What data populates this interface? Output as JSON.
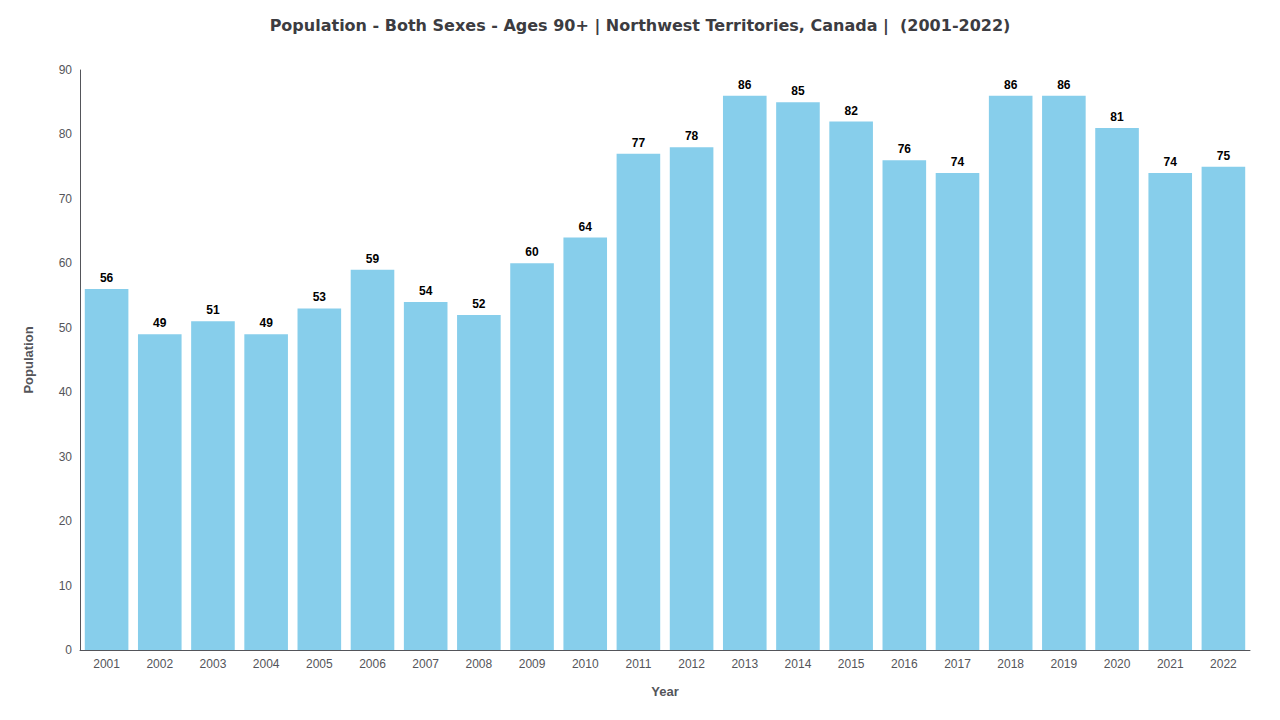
{
  "chart_data": {
    "type": "bar",
    "title": "Population - Both Sexes - Ages 90+ | Northwest Territories, Canada |  (2001-2022)",
    "xlabel": "Year",
    "ylabel": "Population",
    "categories": [
      "2001",
      "2002",
      "2003",
      "2004",
      "2005",
      "2006",
      "2007",
      "2008",
      "2009",
      "2010",
      "2011",
      "2012",
      "2013",
      "2014",
      "2015",
      "2016",
      "2017",
      "2018",
      "2019",
      "2020",
      "2021",
      "2022"
    ],
    "values": [
      56,
      49,
      51,
      49,
      53,
      59,
      54,
      52,
      60,
      64,
      77,
      78,
      86,
      85,
      82,
      76,
      74,
      86,
      86,
      81,
      74,
      75
    ],
    "color": "#87CEEB",
    "ylim": [
      0,
      90
    ],
    "yticks": [
      0,
      10,
      20,
      30,
      40,
      50,
      60,
      70,
      80,
      90
    ],
    "grid": false,
    "data_labels": true
  }
}
